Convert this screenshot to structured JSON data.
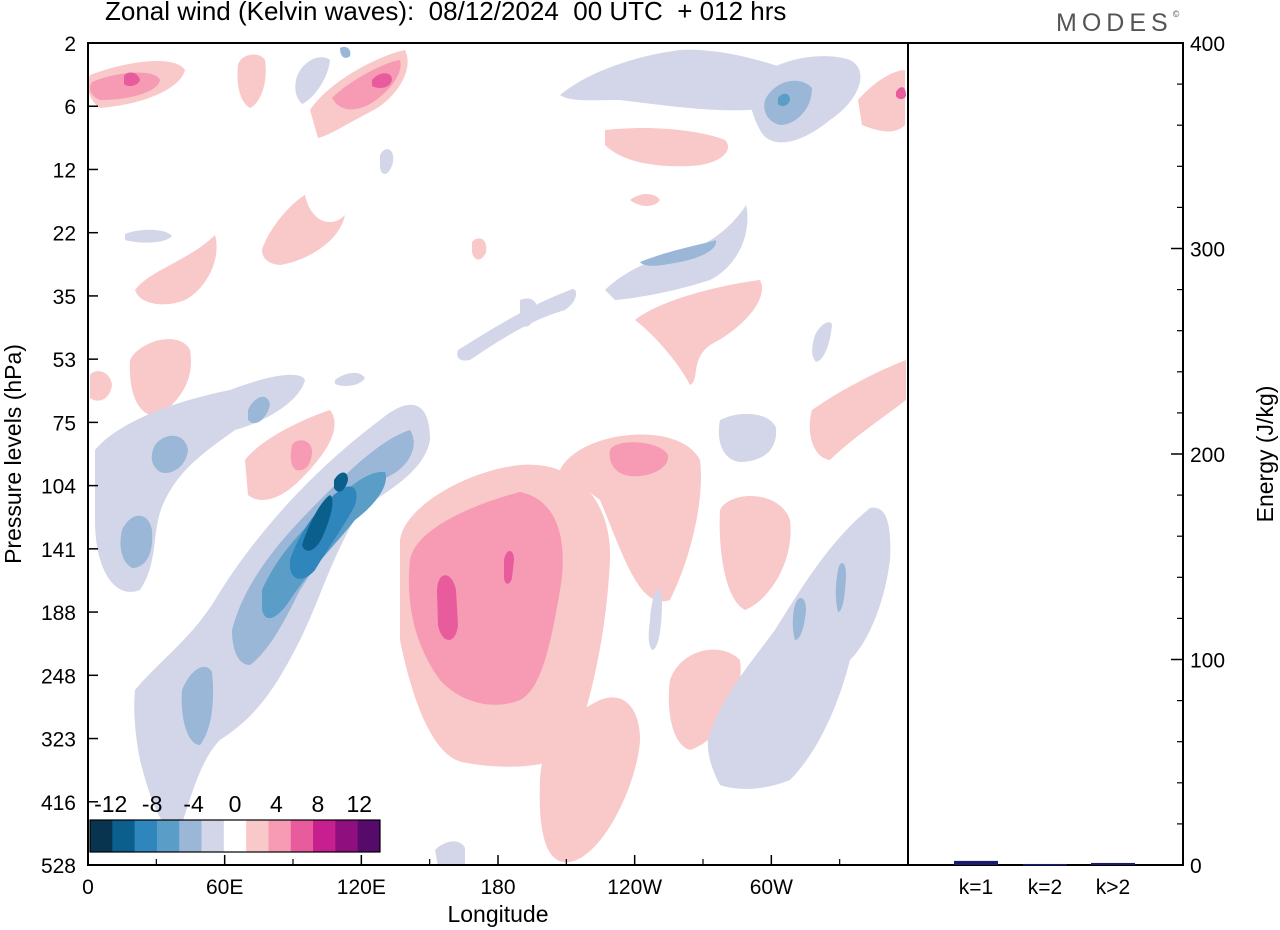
{
  "header": {
    "title": "Zonal wind (Kelvin waves):  08/12/2024  00 UTC  + 012 hrs",
    "logo_text": "MODES",
    "logo_mark": "©"
  },
  "chart_data": [
    {
      "type": "heatmap",
      "title": "Zonal wind (Kelvin waves):  08/12/2024  00 UTC  + 012 hrs",
      "xlabel": "Longitude",
      "ylabel": "Pressure levels (hPa)",
      "x_ticks": [
        "0",
        "60E",
        "120E",
        "180",
        "120W",
        "60W"
      ],
      "x_tick_values": [
        0,
        60,
        120,
        180,
        240,
        300
      ],
      "xlim": [
        0,
        360
      ],
      "y_ticks": [
        "2",
        "6",
        "12",
        "22",
        "35",
        "53",
        "75",
        "104",
        "141",
        "188",
        "248",
        "323",
        "416",
        "528"
      ],
      "y_scale": "log-pressure, inverted (2 hPa at top)",
      "grid": false,
      "colorbar": {
        "labels": [
          "-12",
          "-8",
          "-4",
          "0",
          "4",
          "8",
          "12"
        ],
        "levels": [
          -14,
          -12,
          -10,
          -8,
          -6,
          -4,
          -2,
          2,
          4,
          6,
          8,
          10,
          12,
          14
        ],
        "colors": [
          "#08344f",
          "#0a5f8c",
          "#2e86bc",
          "#5a9dc6",
          "#9ab7d8",
          "#d3d6e8",
          "#ffffff",
          "#f9c8c8",
          "#f69bb3",
          "#e85c9e",
          "#c71f8f",
          "#8f0f7f",
          "#560a6a"
        ],
        "placement": "bottom-left"
      },
      "features": [
        {
          "sign": "positive",
          "level": 4,
          "lon_range": [
            140,
            220
          ],
          "pressure_range": [
            100,
            420
          ]
        },
        {
          "sign": "negative",
          "level": -10,
          "lon_range": [
            70,
            140
          ],
          "pressure_range": [
            85,
            250
          ]
        },
        {
          "sign": "negative",
          "level": -4,
          "lon_range": [
            290,
            350
          ],
          "pressure_range": [
            130,
            330
          ]
        },
        {
          "sign": "positive",
          "level": 4,
          "lon_range": [
            240,
            265
          ],
          "pressure_range": [
            80,
            110
          ]
        },
        {
          "sign": "negative",
          "level": -4,
          "lon_range": [
            300,
            350
          ],
          "pressure_range": [
            3,
            8
          ]
        }
      ]
    },
    {
      "type": "bar",
      "categories": [
        "k=1",
        "k=2",
        "k>2"
      ],
      "values": [
        2,
        0.5,
        1
      ],
      "ylabel": "Energy (J/kg)",
      "ylim": [
        0,
        400
      ],
      "y_ticks": [
        "0",
        "100",
        "200",
        "300",
        "400"
      ],
      "bar_color": "#1a1a6e"
    }
  ]
}
